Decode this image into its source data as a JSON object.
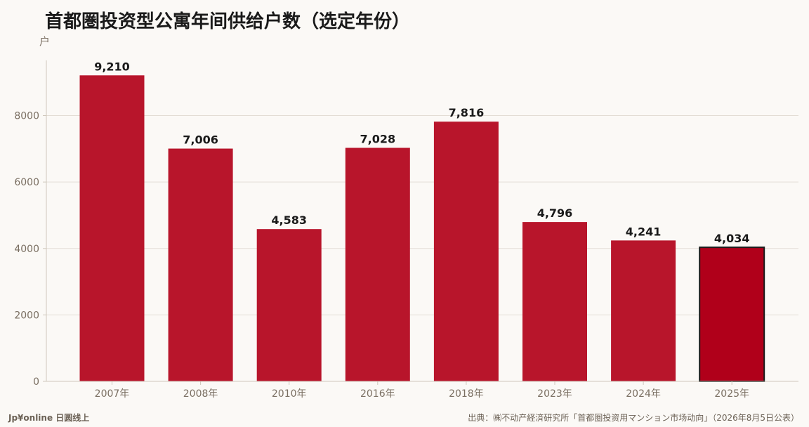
{
  "chart_data": {
    "type": "bar",
    "title": "首都圏投资型公寓年间供给户数（选定年份）",
    "ylabel": "户",
    "xlabel": "",
    "categories": [
      "2007年",
      "2008年",
      "2010年",
      "2016年",
      "2018年",
      "2023年",
      "2024年",
      "2025年"
    ],
    "values": [
      9210,
      7006,
      4583,
      7028,
      7816,
      4796,
      4241,
      4034
    ],
    "value_labels": [
      "9,210",
      "7,006",
      "4,583",
      "7,028",
      "7,816",
      "4,796",
      "4,241",
      "4,034"
    ],
    "ylim": [
      0,
      9660
    ],
    "yticks": [
      0,
      2000,
      4000,
      6000,
      8000
    ],
    "grid": true,
    "highlight_index": 7
  },
  "colors": {
    "bar": "#b8152b",
    "highlight": "#b0001a",
    "highlight_border": "#1a1a1a",
    "grid": "#e3ddd5",
    "axis": "#cfc7bc"
  },
  "footer": {
    "brand": "Jp¥online 日圆线上",
    "source": "出典：㈱不动产経済研究所「首都圏投资用マンション市场动向」（2026年8月5日公表）"
  }
}
